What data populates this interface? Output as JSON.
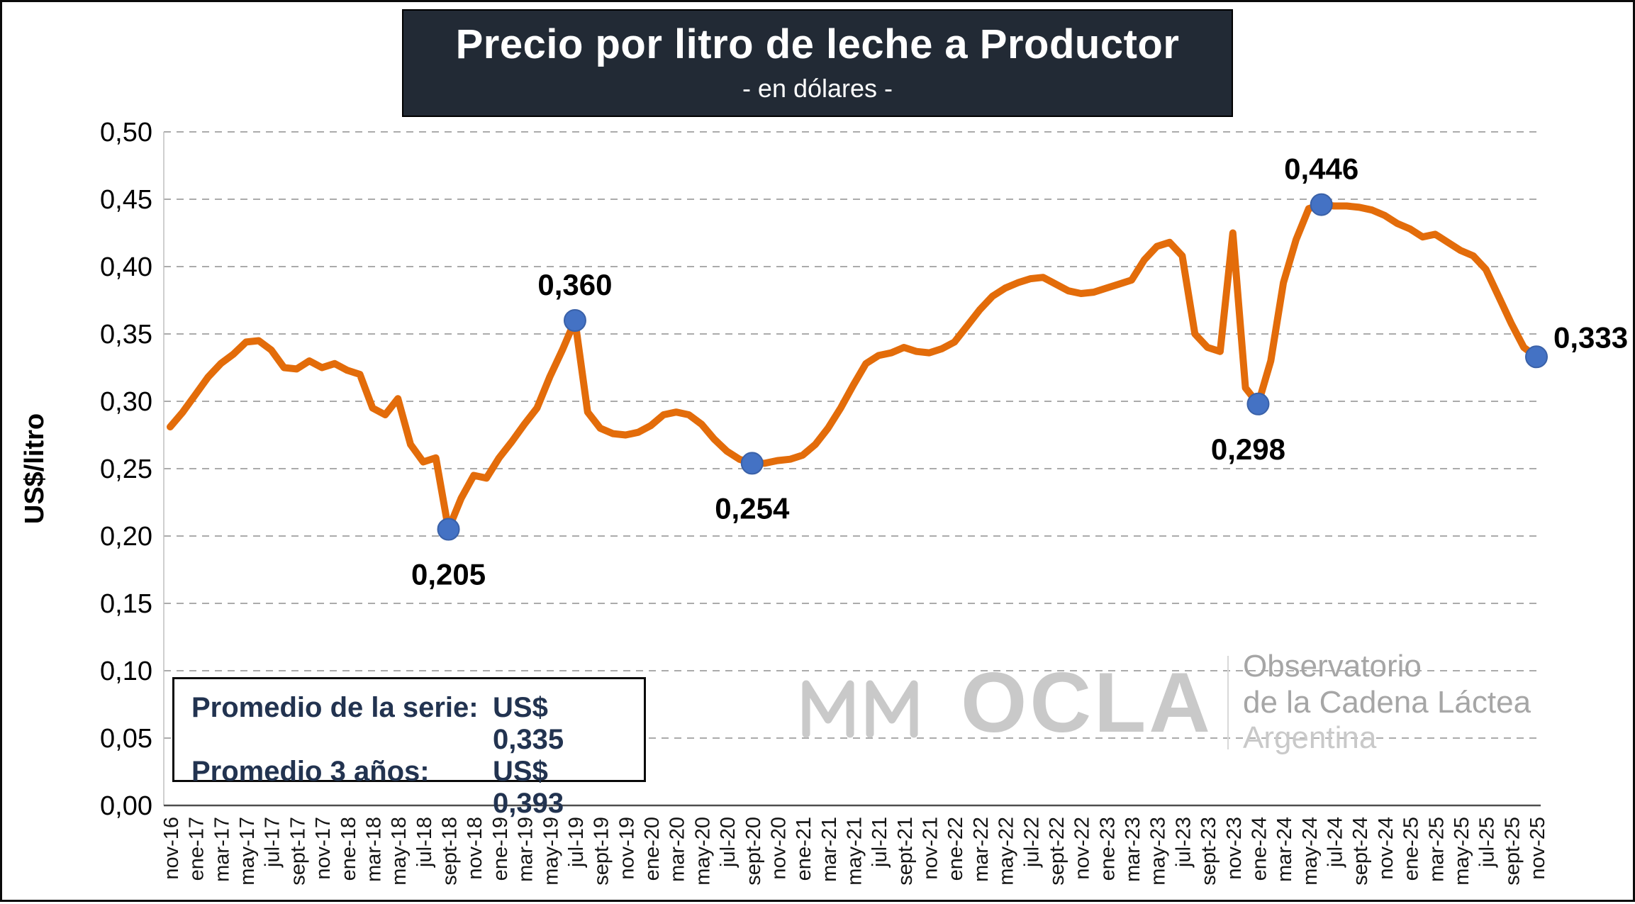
{
  "title": {
    "text": "Precio por litro de leche a Productor",
    "subtitle": "- en dólares -",
    "bg_color": "#222A35",
    "text_color": "#FFFFFF"
  },
  "stats_box": {
    "line1_label": "Promedio de la serie:",
    "line1_value": "US$ 0,335",
    "line2_label": "Promedio 3 años:",
    "line2_value": "US$ 0,393"
  },
  "watermark": {
    "acronym": "OCLA",
    "line1": "Observatorio",
    "line2": "de la Cadena Láctea",
    "line3": "Argentina"
  },
  "colors": {
    "series": "#E36C0A",
    "marker_fill": "#4472C4",
    "marker_stroke": "#3A61A8",
    "grid": "#ABABAB",
    "title_bg": "#222A35",
    "stats_text": "#223350"
  },
  "chart_data": {
    "type": "line",
    "title": "Precio por litro de leche a Productor",
    "subtitle": "- en dólares -",
    "ylabel": "US$/litro",
    "xlabel": "",
    "ylim": [
      0,
      0.5
    ],
    "y_tick_step": 0.05,
    "x_tick_every": 2,
    "grid": "horizontal-dashed",
    "series_color": "#E36C0A",
    "marker_color": "#4472C4",
    "x": [
      "nov-16",
      "dic-16",
      "ene-17",
      "feb-17",
      "mar-17",
      "abr-17",
      "may-17",
      "jun-17",
      "jul-17",
      "ago-17",
      "sept-17",
      "oct-17",
      "nov-17",
      "dic-17",
      "ene-18",
      "feb-18",
      "mar-18",
      "abr-18",
      "may-18",
      "jun-18",
      "jul-18",
      "ago-18",
      "sept-18",
      "oct-18",
      "nov-18",
      "dic-18",
      "ene-19",
      "feb-19",
      "mar-19",
      "abr-19",
      "may-19",
      "jun-19",
      "jul-19",
      "ago-19",
      "sept-19",
      "oct-19",
      "nov-19",
      "dic-19",
      "ene-20",
      "feb-20",
      "mar-20",
      "abr-20",
      "may-20",
      "jun-20",
      "jul-20",
      "ago-20",
      "sept-20",
      "oct-20",
      "nov-20",
      "dic-20",
      "ene-21",
      "feb-21",
      "mar-21",
      "abr-21",
      "may-21",
      "jun-21",
      "jul-21",
      "ago-21",
      "sept-21",
      "oct-21",
      "nov-21",
      "dic-21",
      "ene-22",
      "feb-22",
      "mar-22",
      "abr-22",
      "may-22",
      "jun-22",
      "jul-22",
      "ago-22",
      "sept-22",
      "oct-22",
      "nov-22",
      "dic-22",
      "ene-23",
      "feb-23",
      "mar-23",
      "abr-23",
      "may-23",
      "jun-23",
      "jul-23",
      "ago-23",
      "sept-23",
      "oct-23",
      "nov-23",
      "dic-23",
      "ene-24",
      "feb-24",
      "mar-24",
      "abr-24",
      "may-24",
      "jun-24",
      "jul-24",
      "ago-24",
      "sept-24",
      "oct-24",
      "nov-24",
      "dic-24",
      "ene-25",
      "feb-25",
      "mar-25",
      "abr-25",
      "may-25",
      "jun-25",
      "jul-25",
      "ago-25",
      "sept-25",
      "oct-25",
      "nov-25"
    ],
    "values": [
      0.281,
      0.292,
      0.305,
      0.318,
      0.328,
      0.335,
      0.344,
      0.345,
      0.338,
      0.325,
      0.324,
      0.33,
      0.325,
      0.328,
      0.323,
      0.32,
      0.295,
      0.29,
      0.302,
      0.268,
      0.255,
      0.258,
      0.205,
      0.228,
      0.245,
      0.243,
      0.258,
      0.27,
      0.283,
      0.295,
      0.318,
      0.338,
      0.36,
      0.292,
      0.28,
      0.276,
      0.275,
      0.277,
      0.282,
      0.29,
      0.292,
      0.29,
      0.283,
      0.272,
      0.263,
      0.257,
      0.254,
      0.254,
      0.256,
      0.257,
      0.26,
      0.268,
      0.28,
      0.295,
      0.312,
      0.328,
      0.334,
      0.336,
      0.34,
      0.337,
      0.336,
      0.339,
      0.344,
      0.356,
      0.368,
      0.378,
      0.384,
      0.388,
      0.391,
      0.392,
      0.387,
      0.382,
      0.38,
      0.381,
      0.384,
      0.387,
      0.39,
      0.405,
      0.415,
      0.418,
      0.408,
      0.35,
      0.34,
      0.337,
      0.425,
      0.31,
      0.298,
      0.33,
      0.388,
      0.42,
      0.443,
      0.446,
      0.445,
      0.445,
      0.444,
      0.442,
      0.438,
      0.432,
      0.428,
      0.422,
      0.424,
      0.418,
      0.412,
      0.408,
      0.398,
      0.378,
      0.358,
      0.34,
      0.333
    ],
    "annotations": [
      {
        "month": "sept-18",
        "index": 22,
        "value": 0.205,
        "label": "0,205",
        "placement": "below"
      },
      {
        "month": "jul-19",
        "index": 32,
        "value": 0.36,
        "label": "0,360",
        "placement": "above"
      },
      {
        "month": "sept-20",
        "index": 46,
        "value": 0.254,
        "label": "0,254",
        "placement": "below"
      },
      {
        "month": "ene-24",
        "index": 86,
        "value": 0.298,
        "label": "0,298",
        "placement": "below",
        "dx": -14
      },
      {
        "month": "jun-24",
        "index": 91,
        "value": 0.446,
        "label": "0,446",
        "placement": "above"
      },
      {
        "month": "nov-25",
        "index": 108,
        "value": 0.333,
        "label": "0,333",
        "placement": "right"
      }
    ]
  }
}
